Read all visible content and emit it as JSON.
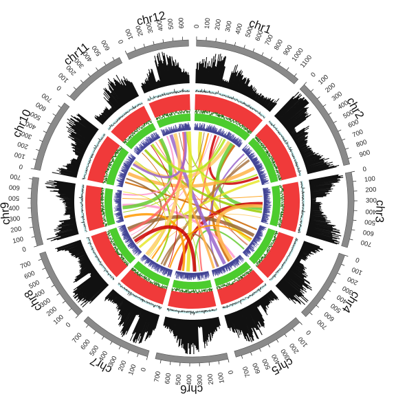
{
  "chart_data": {
    "type": "circos",
    "unit_note": "tick labels in Mb",
    "chromosomes": [
      {
        "name": "chr1",
        "length": 1150,
        "ticks": [
          0,
          100,
          200,
          300,
          400,
          500,
          600,
          700,
          800,
          900,
          1000,
          1100
        ]
      },
      {
        "name": "chr2",
        "length": 960,
        "ticks": [
          0,
          100,
          200,
          300,
          400,
          500,
          600,
          700,
          800,
          900
        ]
      },
      {
        "name": "chr3",
        "length": 790,
        "ticks": [
          0,
          100,
          200,
          300,
          400,
          500,
          600,
          700
        ]
      },
      {
        "name": "chr4",
        "length": 760,
        "ticks": [
          0,
          100,
          200,
          300,
          400,
          500,
          600,
          700
        ]
      },
      {
        "name": "chr5",
        "length": 760,
        "ticks": [
          0,
          100,
          200,
          300,
          400,
          500,
          600,
          700
        ]
      },
      {
        "name": "chr6",
        "length": 760,
        "ticks": [
          0,
          100,
          200,
          300,
          400,
          500,
          600,
          700
        ]
      },
      {
        "name": "chr7",
        "length": 760,
        "ticks": [
          0,
          100,
          200,
          300,
          400,
          500,
          600,
          700
        ]
      },
      {
        "name": "chr8",
        "length": 760,
        "ticks": [
          0,
          100,
          200,
          300,
          400,
          500,
          600,
          700
        ]
      },
      {
        "name": "chr9",
        "length": 720,
        "ticks": [
          0,
          100,
          200,
          300,
          400,
          500,
          600,
          700
        ]
      },
      {
        "name": "chr10",
        "length": 760,
        "ticks": [
          0,
          100,
          200,
          300,
          400,
          500,
          600,
          700
        ]
      },
      {
        "name": "chr11",
        "length": 660,
        "ticks": [
          0,
          100,
          200,
          300,
          400,
          500,
          600
        ]
      },
      {
        "name": "chr12",
        "length": 660,
        "ticks": [
          0,
          100,
          200,
          300,
          400,
          500,
          600
        ]
      }
    ],
    "tracks": [
      {
        "type": "histogram",
        "color": "#111111"
      },
      {
        "type": "line",
        "color": "#5fd6d6"
      },
      {
        "type": "heatmap",
        "color": "#f03a3a"
      },
      {
        "type": "histogram",
        "color": "#4ccc2e"
      },
      {
        "type": "histogram",
        "color": "#6f72d8"
      }
    ],
    "link_colors": [
      "#e6e62a",
      "#ff9900",
      "#cc0000",
      "#99cc00",
      "#ffcc66",
      "#cc6600",
      "#996633",
      "#ff6666",
      "#66cc33",
      "#ff99cc",
      "#9966cc",
      "#aa7744",
      "#ffb347",
      "#b5e61d"
    ],
    "links": [
      [
        0,
        150,
        3,
        420
      ],
      [
        0,
        340,
        6,
        560
      ],
      [
        0,
        520,
        1,
        760
      ],
      [
        0,
        690,
        8,
        210
      ],
      [
        0,
        880,
        9,
        640
      ],
      [
        0,
        1030,
        4,
        300
      ],
      [
        0,
        240,
        11,
        380
      ],
      [
        0,
        600,
        5,
        150
      ],
      [
        0,
        960,
        2,
        480
      ],
      [
        0,
        420,
        7,
        470
      ],
      [
        1,
        110,
        4,
        610
      ],
      [
        1,
        300,
        6,
        230
      ],
      [
        1,
        520,
        9,
        350
      ],
      [
        1,
        690,
        11,
        560
      ],
      [
        1,
        850,
        7,
        120
      ],
      [
        2,
        180,
        8,
        540
      ],
      [
        2,
        360,
        5,
        690
      ],
      [
        2,
        560,
        10,
        200
      ],
      [
        2,
        700,
        6,
        620
      ],
      [
        3,
        120,
        9,
        130
      ],
      [
        3,
        280,
        7,
        640
      ],
      [
        3,
        540,
        10,
        520
      ],
      [
        3,
        680,
        5,
        310
      ],
      [
        4,
        140,
        8,
        380
      ],
      [
        4,
        420,
        11,
        180
      ],
      [
        4,
        580,
        6,
        300
      ],
      [
        4,
        700,
        10,
        620
      ],
      [
        5,
        200,
        9,
        700
      ],
      [
        5,
        480,
        11,
        620
      ],
      [
        5,
        600,
        8,
        90
      ],
      [
        6,
        120,
        10,
        380
      ],
      [
        6,
        420,
        9,
        500
      ],
      [
        6,
        720,
        11,
        280
      ],
      [
        7,
        230,
        10,
        100
      ],
      [
        7,
        380,
        9,
        220
      ],
      [
        7,
        580,
        11,
        480
      ],
      [
        8,
        320,
        10,
        720
      ],
      [
        8,
        640,
        11,
        80
      ],
      [
        9,
        600,
        11,
        520
      ],
      [
        1,
        220,
        3,
        560
      ],
      [
        2,
        420,
        4,
        230
      ],
      [
        0,
        760,
        10,
        420
      ],
      [
        6,
        660,
        8,
        700
      ],
      [
        3,
        380,
        6,
        80
      ],
      [
        5,
        320,
        7,
        300
      ]
    ]
  }
}
